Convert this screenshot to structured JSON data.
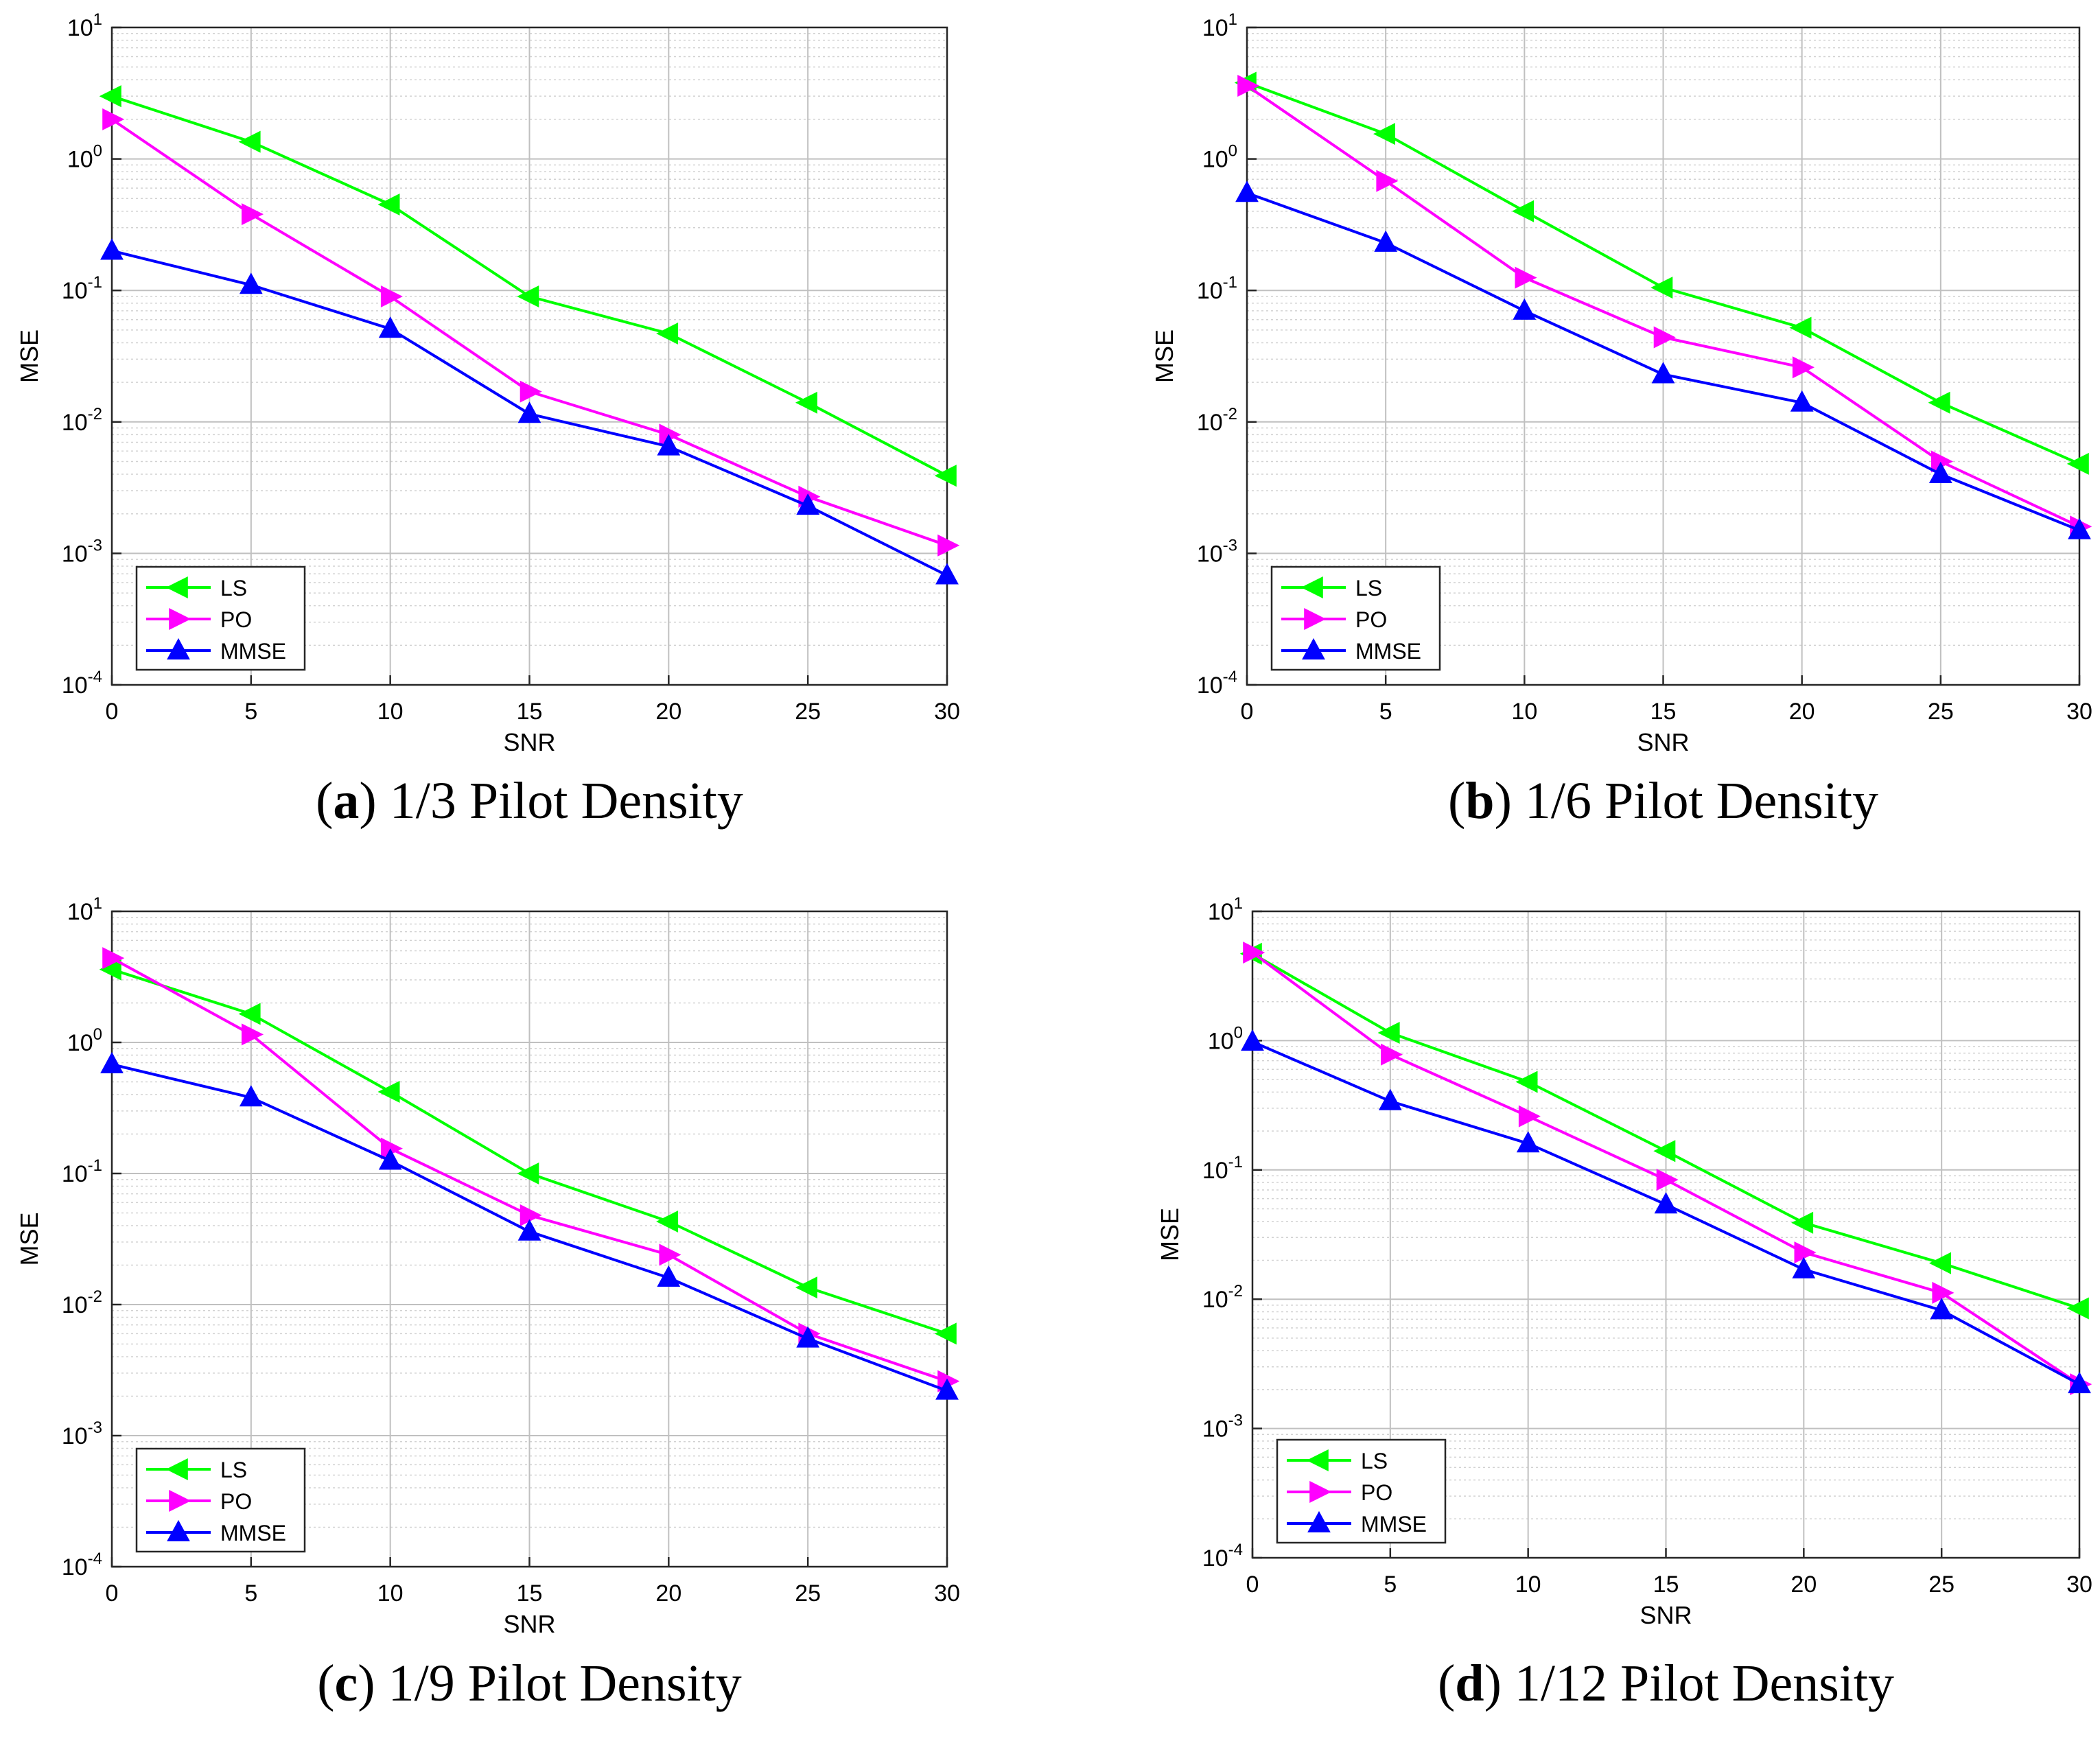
{
  "chart_data": [
    {
      "type": "line",
      "caption_letter": "a",
      "caption_text": "1/3 Pilot Density",
      "xlabel": "SNR",
      "ylabel": "MSE",
      "yscale": "log",
      "xlim": [
        0,
        30
      ],
      "ylim": [
        0.0001,
        10
      ],
      "x_ticks": [
        "0",
        "5",
        "10",
        "15",
        "20",
        "25",
        "30"
      ],
      "y_ticks": [
        {
          "base": "10",
          "exp": "-4"
        },
        {
          "base": "10",
          "exp": "-3"
        },
        {
          "base": "10",
          "exp": "-2"
        },
        {
          "base": "10",
          "exp": "-1"
        },
        {
          "base": "10",
          "exp": "0"
        },
        {
          "base": "10",
          "exp": "1"
        }
      ],
      "grid": true,
      "legend_position": "bottom-left",
      "x": [
        0,
        5,
        10,
        15,
        20,
        25,
        30
      ],
      "series": [
        {
          "name": "LS",
          "color": "#00ff00",
          "marker": "triangle-left",
          "values": [
            3.0,
            1.35,
            0.45,
            0.09,
            0.047,
            0.014,
            0.0039
          ]
        },
        {
          "name": "PO",
          "color": "#ff00ff",
          "marker": "triangle-right",
          "values": [
            2.0,
            0.38,
            0.09,
            0.017,
            0.008,
            0.0027,
            0.00115
          ]
        },
        {
          "name": "MMSE",
          "color": "#0000ff",
          "marker": "triangle-up",
          "values": [
            0.2,
            0.11,
            0.051,
            0.0115,
            0.0065,
            0.0023,
            0.00068
          ]
        }
      ]
    },
    {
      "type": "line",
      "caption_letter": "b",
      "caption_text": "1/6 Pilot Density",
      "xlabel": "SNR",
      "ylabel": "MSE",
      "yscale": "log",
      "xlim": [
        0,
        30
      ],
      "ylim": [
        0.0001,
        10
      ],
      "x_ticks": [
        "0",
        "5",
        "10",
        "15",
        "20",
        "25",
        "30"
      ],
      "y_ticks": [
        {
          "base": "10",
          "exp": "-4"
        },
        {
          "base": "10",
          "exp": "-3"
        },
        {
          "base": "10",
          "exp": "-2"
        },
        {
          "base": "10",
          "exp": "-1"
        },
        {
          "base": "10",
          "exp": "0"
        },
        {
          "base": "10",
          "exp": "1"
        }
      ],
      "grid": true,
      "legend_position": "bottom-left",
      "x": [
        0,
        5,
        10,
        15,
        20,
        25,
        30
      ],
      "series": [
        {
          "name": "LS",
          "color": "#00ff00",
          "marker": "triangle-left",
          "values": [
            3.8,
            1.55,
            0.4,
            0.105,
            0.052,
            0.014,
            0.0048
          ]
        },
        {
          "name": "PO",
          "color": "#ff00ff",
          "marker": "triangle-right",
          "values": [
            3.6,
            0.68,
            0.125,
            0.044,
            0.026,
            0.005,
            0.0016
          ]
        },
        {
          "name": "MMSE",
          "color": "#0000ff",
          "marker": "triangle-up",
          "values": [
            0.55,
            0.23,
            0.07,
            0.023,
            0.014,
            0.004,
            0.0015
          ]
        }
      ]
    },
    {
      "type": "line",
      "caption_letter": "c",
      "caption_text": "1/9 Pilot Density",
      "xlabel": "SNR",
      "ylabel": "MSE",
      "yscale": "log",
      "xlim": [
        0,
        30
      ],
      "ylim": [
        0.0001,
        10
      ],
      "x_ticks": [
        "0",
        "5",
        "10",
        "15",
        "20",
        "25",
        "30"
      ],
      "y_ticks": [
        {
          "base": "10",
          "exp": "-4"
        },
        {
          "base": "10",
          "exp": "-3"
        },
        {
          "base": "10",
          "exp": "-2"
        },
        {
          "base": "10",
          "exp": "-1"
        },
        {
          "base": "10",
          "exp": "0"
        },
        {
          "base": "10",
          "exp": "1"
        }
      ],
      "grid": true,
      "legend_position": "bottom-left",
      "x": [
        0,
        5,
        10,
        15,
        20,
        25,
        30
      ],
      "series": [
        {
          "name": "LS",
          "color": "#00ff00",
          "marker": "triangle-left",
          "values": [
            3.6,
            1.65,
            0.42,
            0.1,
            0.043,
            0.0135,
            0.006
          ]
        },
        {
          "name": "PO",
          "color": "#ff00ff",
          "marker": "triangle-right",
          "values": [
            4.4,
            1.15,
            0.155,
            0.048,
            0.024,
            0.006,
            0.0026
          ]
        },
        {
          "name": "MMSE",
          "color": "#0000ff",
          "marker": "triangle-up",
          "values": [
            0.68,
            0.38,
            0.125,
            0.036,
            0.016,
            0.0055,
            0.0022
          ]
        }
      ]
    },
    {
      "type": "line",
      "caption_letter": "d",
      "caption_text": "1/12 Pilot Density",
      "xlabel": "SNR",
      "ylabel": "MSE",
      "yscale": "log",
      "xlim": [
        0,
        30
      ],
      "ylim": [
        0.0001,
        10
      ],
      "x_ticks": [
        "0",
        "5",
        "10",
        "15",
        "20",
        "25",
        "30"
      ],
      "y_ticks": [
        {
          "base": "10",
          "exp": "-4"
        },
        {
          "base": "10",
          "exp": "-3"
        },
        {
          "base": "10",
          "exp": "-2"
        },
        {
          "base": "10",
          "exp": "-1"
        },
        {
          "base": "10",
          "exp": "0"
        },
        {
          "base": "10",
          "exp": "1"
        }
      ],
      "grid": true,
      "legend_position": "bottom-left",
      "x": [
        0,
        5,
        10,
        15,
        20,
        25,
        30
      ],
      "series": [
        {
          "name": "LS",
          "color": "#00ff00",
          "marker": "triangle-left",
          "values": [
            4.7,
            1.15,
            0.48,
            0.14,
            0.039,
            0.019,
            0.0085
          ]
        },
        {
          "name": "PO",
          "color": "#ff00ff",
          "marker": "triangle-right",
          "values": [
            4.8,
            0.78,
            0.26,
            0.084,
            0.023,
            0.0112,
            0.0022
          ]
        },
        {
          "name": "MMSE",
          "color": "#0000ff",
          "marker": "triangle-up",
          "values": [
            0.98,
            0.34,
            0.16,
            0.054,
            0.017,
            0.0082,
            0.0022
          ]
        }
      ]
    }
  ]
}
